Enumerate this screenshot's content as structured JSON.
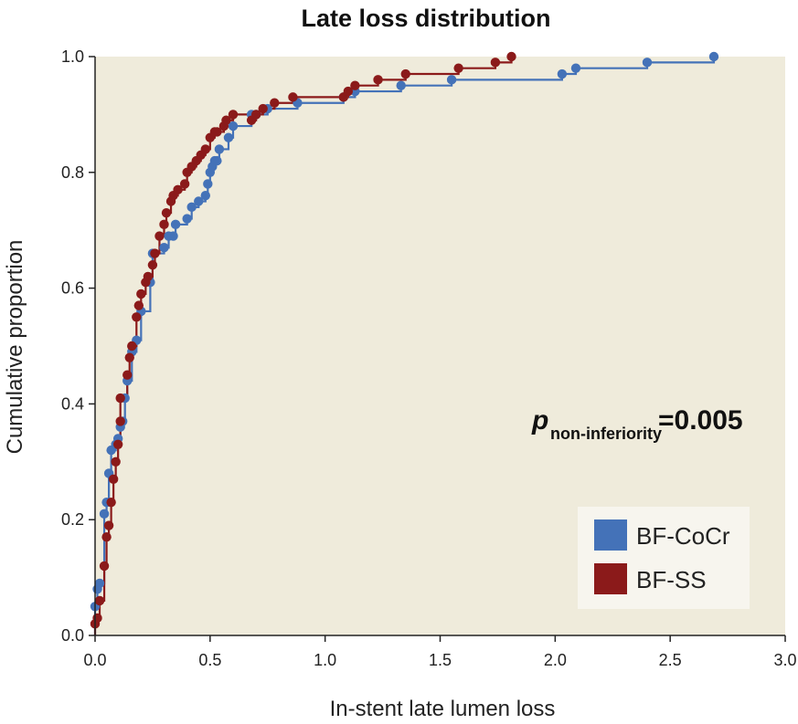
{
  "chart_data": {
    "type": "scatter",
    "title": "Late loss distribution",
    "xlabel": "In-stent late lumen loss",
    "ylabel": "Cumulative proportion",
    "xlim": [
      0,
      3.0
    ],
    "ylim": [
      0,
      1.0
    ],
    "xticks": [
      "0.0",
      "0.5",
      "1.0",
      "1.5",
      "2.0",
      "2.5",
      "3.0"
    ],
    "yticks": [
      "0.0",
      "0.2",
      "0.4",
      "0.6",
      "0.8",
      "1.0"
    ],
    "grid": false,
    "legend_position": "bottom-right",
    "plot_background": "#efebdb",
    "annotation": {
      "italic_p": "p",
      "subscript": "non-inferiority",
      "value": "=0.005"
    },
    "series": [
      {
        "name": "BF-CoCr",
        "color": "#4472b8",
        "x": [
          0.0,
          0.01,
          0.02,
          0.04,
          0.05,
          0.06,
          0.07,
          0.09,
          0.1,
          0.11,
          0.12,
          0.13,
          0.14,
          0.16,
          0.18,
          0.2,
          0.24,
          0.25,
          0.3,
          0.32,
          0.34,
          0.35,
          0.4,
          0.42,
          0.45,
          0.48,
          0.49,
          0.5,
          0.51,
          0.52,
          0.53,
          0.54,
          0.58,
          0.6,
          0.68,
          0.7,
          0.75,
          0.88,
          1.08,
          1.13,
          1.33,
          1.55,
          2.03,
          2.09,
          2.4,
          2.69
        ],
        "y": [
          0.05,
          0.08,
          0.09,
          0.21,
          0.23,
          0.28,
          0.32,
          0.33,
          0.34,
          0.36,
          0.37,
          0.41,
          0.44,
          0.49,
          0.51,
          0.56,
          0.61,
          0.66,
          0.67,
          0.69,
          0.69,
          0.71,
          0.72,
          0.74,
          0.75,
          0.76,
          0.78,
          0.8,
          0.81,
          0.82,
          0.82,
          0.84,
          0.86,
          0.88,
          0.9,
          0.9,
          0.91,
          0.92,
          0.93,
          0.94,
          0.95,
          0.96,
          0.97,
          0.98,
          0.99,
          1.0
        ],
        "step_y": [
          0.0,
          0.05,
          0.08,
          0.09,
          0.21,
          0.23,
          0.28,
          0.32,
          0.33,
          0.34,
          0.36,
          0.37,
          0.41,
          0.44,
          0.49,
          0.51,
          0.56,
          0.61,
          0.66,
          0.67,
          0.69,
          0.69,
          0.71,
          0.72,
          0.74,
          0.75,
          0.76,
          0.78,
          0.8,
          0.81,
          0.82,
          0.82,
          0.84,
          0.87,
          0.88,
          0.9,
          0.9,
          0.915,
          0.92,
          0.935,
          0.935,
          0.95,
          0.96,
          0.97,
          0.985,
          0.99
        ]
      },
      {
        "name": "BF-SS",
        "color": "#8b1a1a",
        "x": [
          0.0,
          0.01,
          0.02,
          0.04,
          0.05,
          0.06,
          0.07,
          0.08,
          0.09,
          0.1,
          0.11,
          0.11,
          0.14,
          0.15,
          0.16,
          0.18,
          0.19,
          0.2,
          0.22,
          0.23,
          0.25,
          0.26,
          0.28,
          0.3,
          0.31,
          0.33,
          0.34,
          0.36,
          0.39,
          0.4,
          0.42,
          0.44,
          0.46,
          0.48,
          0.5,
          0.52,
          0.53,
          0.56,
          0.57,
          0.6,
          0.68,
          0.7,
          0.73,
          0.78,
          0.86,
          1.08,
          1.1,
          1.13,
          1.23,
          1.35,
          1.58,
          1.74,
          1.81
        ],
        "y": [
          0.02,
          0.03,
          0.06,
          0.12,
          0.17,
          0.19,
          0.23,
          0.27,
          0.3,
          0.33,
          0.37,
          0.41,
          0.45,
          0.48,
          0.5,
          0.55,
          0.57,
          0.59,
          0.61,
          0.62,
          0.64,
          0.66,
          0.69,
          0.71,
          0.73,
          0.75,
          0.76,
          0.77,
          0.78,
          0.8,
          0.81,
          0.82,
          0.83,
          0.84,
          0.86,
          0.87,
          0.87,
          0.88,
          0.89,
          0.9,
          0.89,
          0.9,
          0.91,
          0.92,
          0.93,
          0.93,
          0.94,
          0.95,
          0.96,
          0.97,
          0.98,
          0.99,
          1.0
        ],
        "step_y": [
          0.0,
          0.02,
          0.03,
          0.06,
          0.12,
          0.17,
          0.19,
          0.23,
          0.27,
          0.3,
          0.33,
          0.37,
          0.41,
          0.45,
          0.48,
          0.5,
          0.55,
          0.57,
          0.59,
          0.61,
          0.62,
          0.64,
          0.66,
          0.69,
          0.71,
          0.73,
          0.75,
          0.76,
          0.77,
          0.78,
          0.8,
          0.81,
          0.82,
          0.83,
          0.84,
          0.86,
          0.87,
          0.87,
          0.88,
          0.89,
          0.89,
          0.9,
          0.91,
          0.915,
          0.925,
          0.925,
          0.94,
          0.95,
          0.96,
          0.97,
          0.98,
          0.99
        ]
      }
    ]
  }
}
